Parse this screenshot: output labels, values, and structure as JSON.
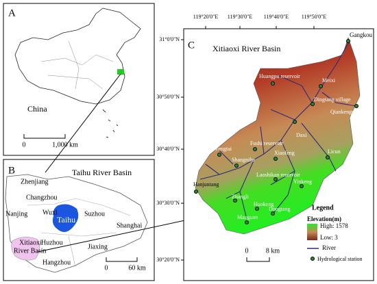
{
  "panel_a": {
    "label": "A",
    "country": "China",
    "scale": {
      "start": "0",
      "end": "1,000 km"
    }
  },
  "panel_b": {
    "label": "B",
    "title": "Taihu River Basin",
    "places": [
      "Zhenjiang",
      "Changzhou",
      "Nanjing",
      "Wuxi",
      "Suzhou",
      "Taihu",
      "Shanghai",
      "Huzhou",
      "Xitiaoxi",
      "River Basin",
      "Jiaxing",
      "Hangzhou"
    ],
    "scale": {
      "start": "0",
      "end": "60 km"
    }
  },
  "panel_c": {
    "label": "C",
    "title": "Xitiaoxi River Basin",
    "longitudes": [
      "119°20'0\"E",
      "119°30'0\"E",
      "119°40'0\"E",
      "119°50'0\"E"
    ],
    "latitudes": [
      "31°0'0\"N",
      "30°50'0\"N",
      "30°40'0\"N",
      "30°30'0\"N",
      "30°20'0\"N"
    ],
    "stations": [
      "Gangkou",
      "Huangpu reservoir",
      "Meixi",
      "Dingtang village",
      "Qiankengqiao",
      "Fengtai",
      "Fushi reservoir",
      "Daxi",
      "Shangnihe",
      "Xiaofeng",
      "Licun",
      "Laoshikan reservoir",
      "Hanjuntang",
      "Yinkeng",
      "Zhangli",
      "Huokeng",
      "Dongtang",
      "Maoguan"
    ],
    "legend": {
      "title": "Legend",
      "elevation": "Elevation(m)",
      "high": "High: 1578",
      "low": "Low: 3",
      "river": "River",
      "station": "Hydrological station"
    },
    "scale": {
      "start": "0",
      "end": "8 km"
    }
  }
}
